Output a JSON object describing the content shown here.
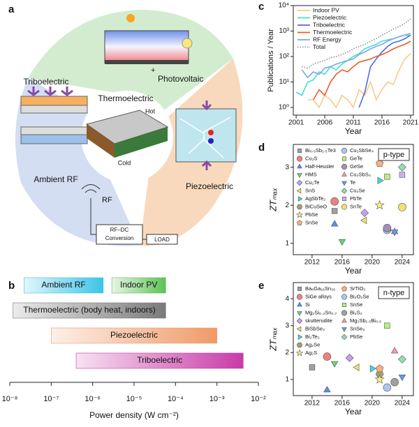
{
  "diagram": {
    "panel": "a",
    "labels": {
      "triboelectric": "Triboelectric",
      "thermoelectric": "Thermoelectric",
      "hot": "Hot",
      "cold": "Cold",
      "photovoltaic": "Photovoltaic",
      "plus": "+",
      "ambient_rf": "Ambient RF",
      "rf": "RF",
      "rfdc_line1": "RF–DC",
      "rfdc_line2": "Conversion",
      "load": "LOAD",
      "piezoelectric": "Piezoelectric"
    }
  },
  "chart_data": [
    {
      "type": "range_bar",
      "panel": "b",
      "xlabel": "Power density (W cm⁻²)",
      "xscale": "log",
      "xlim": [
        1e-08,
        0.01
      ],
      "xticks": [
        {
          "value": 1e-08,
          "label": "10⁻⁸"
        },
        {
          "value": 1e-07,
          "label": "10⁻⁷"
        },
        {
          "value": 1e-06,
          "label": "10⁻⁶"
        },
        {
          "value": 1e-05,
          "label": "10⁻⁵"
        },
        {
          "value": 0.0001,
          "label": "10⁻⁴"
        },
        {
          "value": 0.001,
          "label": "10⁻³"
        },
        {
          "value": 0.01,
          "label": "10⁻²"
        }
      ],
      "categories": [
        "Ambient RF",
        "Indoor PV",
        "Thermoelectric (body heat, indoors)",
        "Piezoelectric",
        "Triboelectric"
      ],
      "rows": [
        0,
        0,
        1,
        2,
        3
      ],
      "colors": [
        "#3cc4e8",
        "#5ec254",
        "#7a7a7a",
        "#f09a68",
        "#c83aa8"
      ],
      "values": [
        [
          2.2e-08,
          1.8e-06
        ],
        [
          2.9e-06,
          5.8e-05
        ],
        [
          1.2e-08,
          5.8e-05
        ],
        [
          1e-07,
          0.001
        ],
        [
          4e-07,
          0.0043
        ]
      ]
    },
    {
      "type": "line",
      "panel": "c",
      "xlabel": "Year",
      "ylabel": "Publications / Year",
      "yscale": "log",
      "xlim": [
        2000.5,
        2021.5
      ],
      "ylim": [
        0.5,
        10000
      ],
      "xticks": [
        2001,
        2006,
        2011,
        2016,
        2021
      ],
      "yticks": [
        {
          "value": 1,
          "label": "10⁰"
        },
        {
          "value": 10,
          "label": "10¹"
        },
        {
          "value": 100,
          "label": "10²"
        },
        {
          "value": 1000,
          "label": "10³"
        },
        {
          "value": 10000,
          "label": "10⁴"
        }
      ],
      "x": [
        2001,
        2002,
        2003,
        2004,
        2005,
        2006,
        2007,
        2008,
        2009,
        2010,
        2011,
        2012,
        2013,
        2014,
        2015,
        2016,
        2017,
        2018,
        2019,
        2020,
        2021
      ],
      "series": [
        {
          "name": "Indoor PV",
          "color": "#f9c98a",
          "values": [
            null,
            null,
            2,
            2,
            1,
            3,
            2,
            1,
            3,
            2,
            1,
            5,
            3,
            10,
            2,
            5,
            10,
            8,
            30,
            80,
            130
          ]
        },
        {
          "name": "Piezoelectric",
          "color": "#3fe0d8",
          "values": [
            4,
            3,
            10,
            12,
            25,
            20,
            40,
            30,
            50,
            70,
            100,
            130,
            200,
            250,
            300,
            400,
            450,
            500,
            600,
            700,
            650
          ]
        },
        {
          "name": "Triboelectric",
          "color": "#4a6fe0",
          "values": [
            null,
            null,
            null,
            null,
            null,
            null,
            null,
            null,
            null,
            null,
            null,
            1,
            4,
            40,
            80,
            150,
            250,
            350,
            400,
            500,
            700
          ]
        },
        {
          "name": "Thermoelectric",
          "color": "#ef5a28",
          "values": [
            null,
            null,
            null,
            2,
            5,
            3,
            10,
            20,
            30,
            25,
            40,
            60,
            70,
            80,
            100,
            120,
            150,
            200,
            250,
            300,
            400
          ]
        },
        {
          "name": "RF Energy",
          "color": "#7ea6e0",
          "values": [
            null,
            30,
            15,
            25,
            20,
            35,
            40,
            50,
            60,
            70,
            80,
            120,
            150,
            200,
            250,
            300,
            400,
            500,
            600,
            700,
            800
          ]
        },
        {
          "name": "Total",
          "color": "#9a9a9a",
          "style": "dotted",
          "values": [
            null,
            40,
            35,
            50,
            60,
            70,
            90,
            100,
            120,
            150,
            200,
            250,
            300,
            400,
            500,
            700,
            900,
            1200,
            1500,
            2000,
            3000
          ]
        }
      ]
    },
    {
      "type": "scatter",
      "panel": "d",
      "annotation": "p-type",
      "xlabel": "Year",
      "ylabel": "ZTₘₐₓ",
      "xlim": [
        2009.5,
        2025.5
      ],
      "ylim": [
        0.7,
        3.6
      ],
      "xticks": [
        2012,
        2016,
        2020,
        2024
      ],
      "yticks": [
        1,
        2,
        3
      ],
      "series": [
        {
          "name": "Bi₀.₅Sb₁.₅Te3",
          "color": "#a0a0a0",
          "marker": "square",
          "x": [
            2015
          ],
          "values": [
            1.85
          ]
        },
        {
          "name": "Cu₂S",
          "color": "#f08080",
          "marker": "circle",
          "x": [
            2015
          ],
          "values": [
            2.1
          ]
        },
        {
          "name": "Half-Heusler",
          "color": "#5b8def",
          "marker": "triangle",
          "x": [
            2015
          ],
          "values": [
            1.5
          ]
        },
        {
          "name": "HMS",
          "color": "#6fd07a",
          "marker": "down",
          "x": [
            2016
          ],
          "values": [
            1.05
          ]
        },
        {
          "name": "Cu₂Te",
          "color": "#c9a0e8",
          "marker": "diamond",
          "x": [
            2019
          ],
          "values": [
            1.8
          ]
        },
        {
          "name": "SnS",
          "color": "#f5e06a",
          "marker": "left",
          "x": [
            2019
          ],
          "values": [
            1.6
          ]
        },
        {
          "name": "AgSbTe₂",
          "color": "#3fd8e8",
          "marker": "right",
          "x": [
            2021
          ],
          "values": [
            2.65
          ]
        },
        {
          "name": "BiCuSeO",
          "color": "#a8a070",
          "marker": "hexagon",
          "x": [
            2022
          ],
          "values": [
            1.4
          ]
        },
        {
          "name": "PbSe",
          "color": "#f8f080",
          "marker": "star",
          "x": [
            2021
          ],
          "values": [
            2.0
          ]
        },
        {
          "name": "SnSe",
          "color": "#f8b080",
          "marker": "pentagon",
          "x": [
            2021
          ],
          "values": [
            3.1
          ]
        },
        {
          "name": "Cu₂SbSe₄",
          "color": "#a8c8f0",
          "marker": "circle",
          "x": [
            2022
          ],
          "values": [
            1.35
          ]
        },
        {
          "name": "GeTe",
          "color": "#b8f080",
          "marker": "square",
          "x": [
            2022
          ],
          "values": [
            2.75
          ]
        },
        {
          "name": "GeSe",
          "color": "#a090c0",
          "marker": "circle",
          "x": [
            2022
          ],
          "values": [
            1.4
          ]
        },
        {
          "name": "Cu₃SbS₄",
          "color": "#f49ab0",
          "marker": "triangle",
          "x": [
            2023
          ],
          "values": [
            1.3
          ]
        },
        {
          "name": "Te",
          "color": "#5b9def",
          "marker": "down",
          "x": [
            2023
          ],
          "values": [
            1.3
          ]
        },
        {
          "name": "Cu₂Se",
          "color": "#90e0b0",
          "marker": "diamond",
          "x": [
            2024
          ],
          "values": [
            3.0
          ]
        },
        {
          "name": "PbTe",
          "color": "#d0b0f0",
          "marker": "square",
          "x": [
            2024
          ],
          "values": [
            2.8
          ]
        },
        {
          "name": "SnTe",
          "color": "#f8e070",
          "marker": "circle",
          "x": [
            2024
          ],
          "values": [
            1.95
          ]
        }
      ]
    },
    {
      "type": "scatter",
      "panel": "e",
      "annotation": "n-type",
      "xlabel": "Year",
      "ylabel": "ZTₘₐₓ",
      "xlim": [
        2009.5,
        2025.5
      ],
      "ylim": [
        0.4,
        4.6
      ],
      "xticks": [
        2012,
        2016,
        2020,
        2024
      ],
      "yticks": [
        1,
        2,
        3,
        4
      ],
      "series": [
        {
          "name": "Ba₈Ga₁₆Sn₃₀",
          "color": "#a0a0a0",
          "marker": "square",
          "x": [
            2012
          ],
          "values": [
            1.45
          ]
        },
        {
          "name": "SiGe alloys",
          "color": "#f08080",
          "marker": "circle",
          "x": [
            2014
          ],
          "values": [
            1.85
          ]
        },
        {
          "name": "Si",
          "color": "#5b8def",
          "marker": "triangle",
          "x": [
            2014
          ],
          "values": [
            0.6
          ]
        },
        {
          "name": "Mg₂Si₀.₃Sn₀.₇",
          "color": "#6fd07a",
          "marker": "down",
          "x": [
            2015
          ],
          "values": [
            1.6
          ]
        },
        {
          "name": "skutterudite",
          "color": "#c9a0e8",
          "marker": "diamond",
          "x": [
            2017
          ],
          "values": [
            1.8
          ]
        },
        {
          "name": "BiSbSe₃",
          "color": "#f5e06a",
          "marker": "left",
          "x": [
            2018
          ],
          "values": [
            1.45
          ]
        },
        {
          "name": "Bi₂Te₃",
          "color": "#3fd8e8",
          "marker": "right",
          "x": [
            2020
          ],
          "values": [
            1.4
          ]
        },
        {
          "name": "Ag₂Se",
          "color": "#a8a070",
          "marker": "hexagon",
          "x": [
            2021
          ],
          "values": [
            1.2
          ]
        },
        {
          "name": "Ag₂S",
          "color": "#f8f080",
          "marker": "star",
          "x": [
            2021
          ],
          "values": [
            1.0
          ]
        },
        {
          "name": "SrTiO₃",
          "color": "#f8b080",
          "marker": "pentagon",
          "x": [
            2021
          ],
          "values": [
            1.4
          ]
        },
        {
          "name": "Bi₂O₂Se",
          "color": "#a8c8f0",
          "marker": "circle",
          "x": [
            2022
          ],
          "values": [
            0.7
          ]
        },
        {
          "name": "SnSe",
          "color": "#b8f080",
          "marker": "square",
          "x": [
            2022
          ],
          "values": [
            3.0
          ]
        },
        {
          "name": "Bi₂S₃",
          "color": "#a0a0a0",
          "marker": "circle",
          "x": [
            2023
          ],
          "values": [
            0.9
          ]
        },
        {
          "name": "Mg₃Sb₁.₅Bi₀.₅",
          "color": "#f49ab0",
          "marker": "triangle",
          "x": [
            2023
          ],
          "values": [
            2.05
          ]
        },
        {
          "name": "SnSe₂",
          "color": "#5b9def",
          "marker": "down",
          "x": [
            2024
          ],
          "values": [
            1.1
          ]
        },
        {
          "name": "PbSe",
          "color": "#90e0b0",
          "marker": "diamond",
          "x": [
            2024
          ],
          "values": [
            1.75
          ]
        }
      ]
    }
  ]
}
